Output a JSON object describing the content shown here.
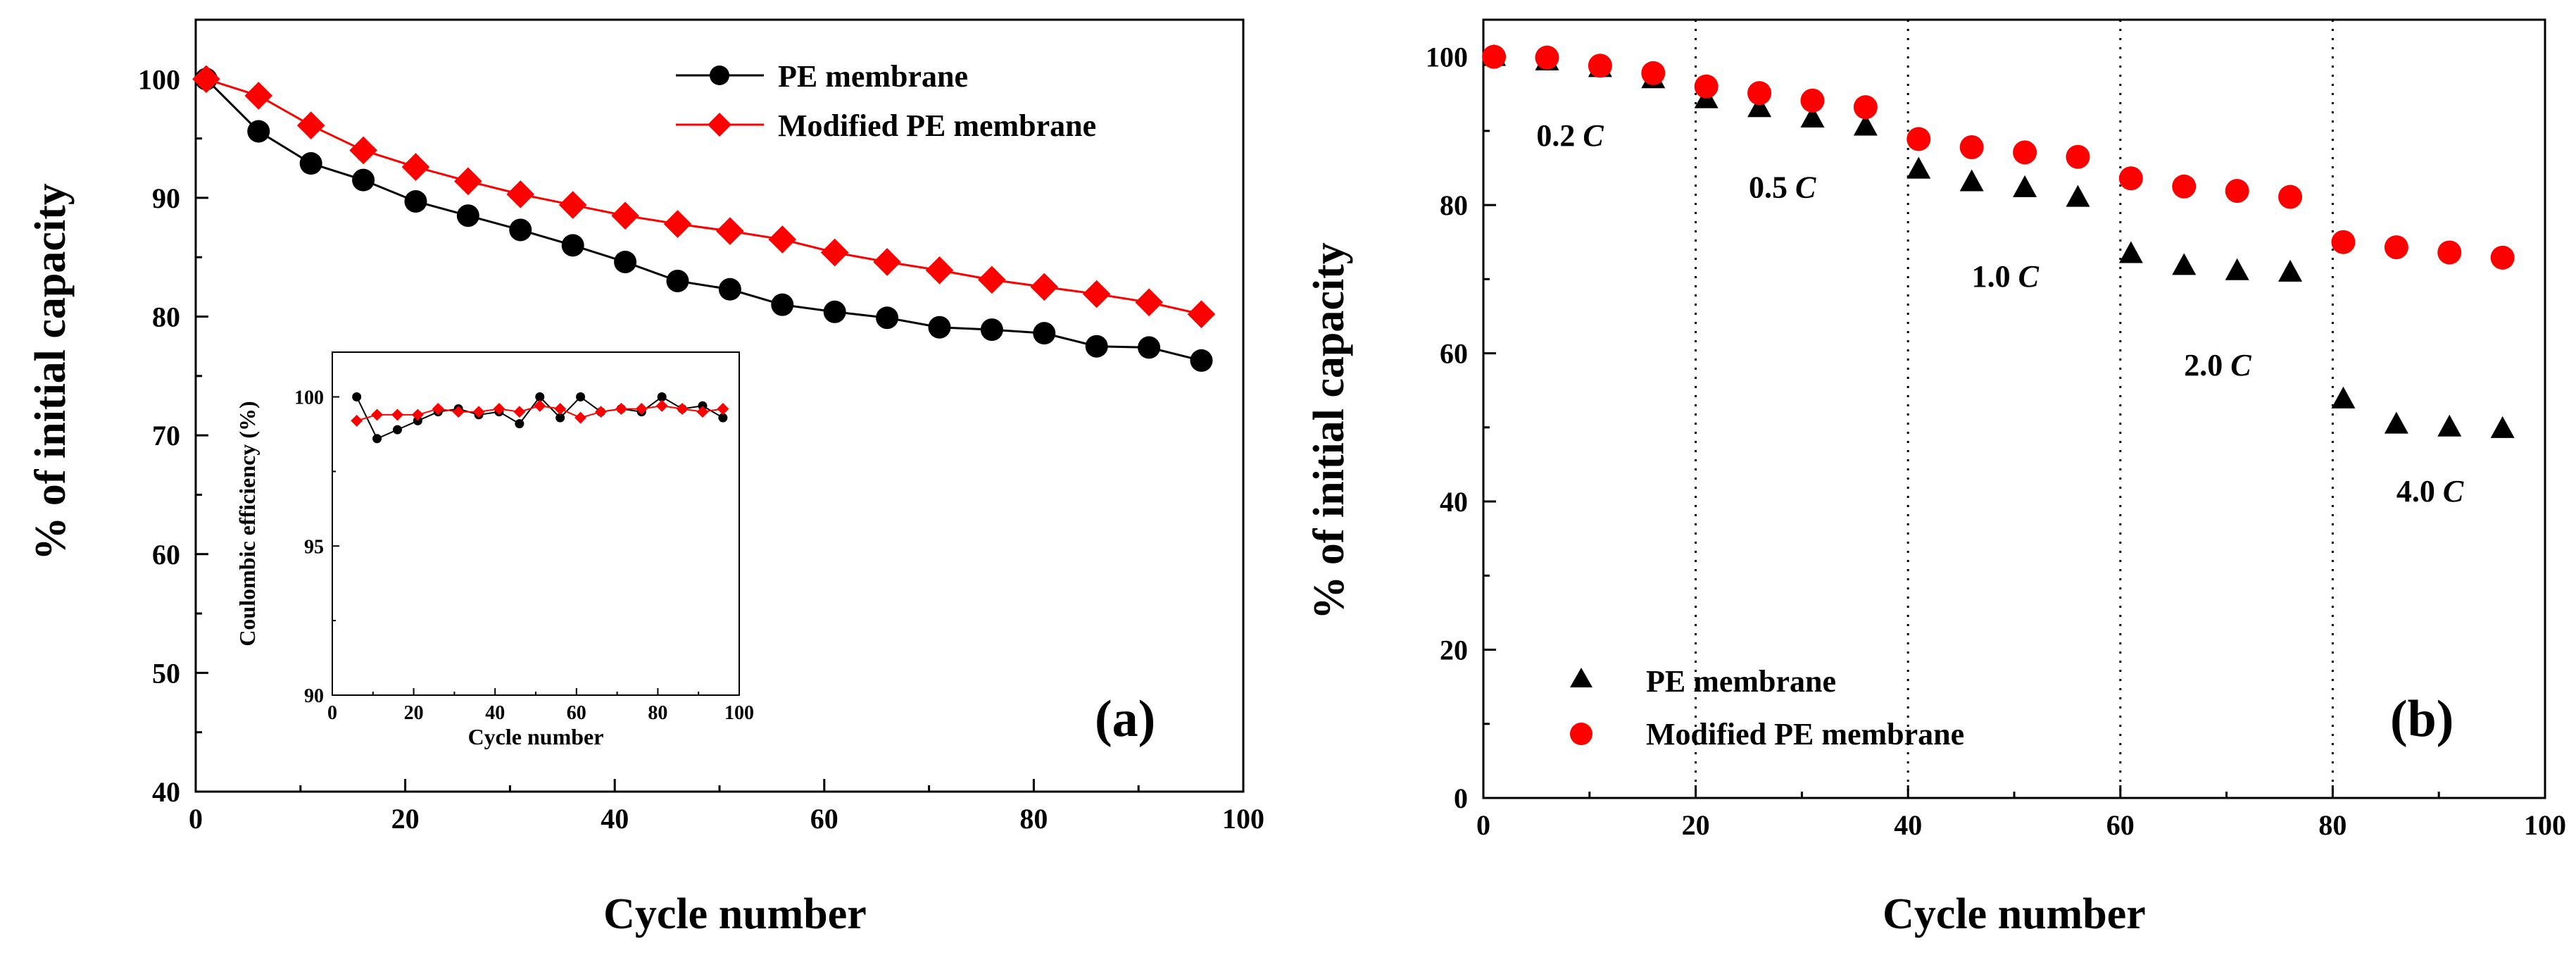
{
  "chart_data": [
    {
      "panel": "(a)",
      "type": "line",
      "xlabel": "Cycle number",
      "ylabel": "% of initial  capacity",
      "xlim": [
        0,
        100
      ],
      "ylim": [
        40,
        105
      ],
      "xticks": [
        0,
        20,
        40,
        60,
        80,
        100
      ],
      "yticks": [
        40,
        50,
        60,
        70,
        80,
        90,
        100
      ],
      "legend_position": "top-right",
      "series": [
        {
          "name": "PE membrane",
          "color": "#000000",
          "marker": "circle",
          "x": [
            1,
            6,
            11,
            16,
            21,
            26,
            31,
            36,
            41,
            46,
            51,
            56,
            61,
            66,
            71,
            76,
            81,
            86,
            91,
            96
          ],
          "y": [
            100,
            95.6,
            92.9,
            91.5,
            89.7,
            88.5,
            87.3,
            86.0,
            84.6,
            83.0,
            82.3,
            81.0,
            80.4,
            79.9,
            79.1,
            78.9,
            78.6,
            77.5,
            77.4,
            76.3
          ]
        },
        {
          "name": "Modified PE membrane",
          "color": "#ff0000",
          "marker": "diamond",
          "x": [
            1,
            6,
            11,
            16,
            21,
            26,
            31,
            36,
            41,
            46,
            51,
            56,
            61,
            66,
            71,
            76,
            81,
            86,
            91,
            96
          ],
          "y": [
            100,
            98.6,
            96.1,
            94.0,
            92.6,
            91.4,
            90.3,
            89.4,
            88.5,
            87.8,
            87.2,
            86.5,
            85.4,
            84.6,
            83.9,
            83.1,
            82.5,
            81.9,
            81.2,
            80.2
          ]
        }
      ],
      "inset": {
        "type": "line",
        "xlabel": "Cycle number",
        "ylabel": "Coulombic efficiency (%)",
        "xlim": [
          0,
          100
        ],
        "ylim": [
          90,
          101.5
        ],
        "xticks": [
          0,
          20,
          40,
          60,
          80,
          100
        ],
        "yticks": [
          90,
          95,
          100
        ],
        "series": [
          {
            "name": "PE membrane",
            "color": "#000000",
            "x": [
              6,
              11,
              16,
              21,
              26,
              31,
              36,
              41,
              46,
              51,
              56,
              61,
              66,
              71,
              76,
              81,
              86,
              91,
              96
            ],
            "y": [
              100.0,
              98.6,
              98.9,
              99.2,
              99.5,
              99.6,
              99.4,
              99.5,
              99.1,
              100.0,
              99.3,
              100.0,
              99.5,
              99.6,
              99.5,
              100.0,
              99.6,
              99.7,
              99.3
            ]
          },
          {
            "name": "Modified PE membrane",
            "color": "#ff0000",
            "x": [
              6,
              11,
              16,
              21,
              26,
              31,
              36,
              41,
              46,
              51,
              56,
              61,
              66,
              71,
              76,
              81,
              86,
              91,
              96
            ],
            "y": [
              99.2,
              99.4,
              99.4,
              99.4,
              99.6,
              99.5,
              99.5,
              99.6,
              99.5,
              99.7,
              99.6,
              99.3,
              99.5,
              99.6,
              99.6,
              99.7,
              99.6,
              99.5,
              99.6
            ]
          }
        ]
      }
    },
    {
      "panel": "(b)",
      "type": "scatter",
      "xlabel": "Cycle number",
      "ylabel": "% of initial  capacity",
      "xlim": [
        0,
        100
      ],
      "ylim": [
        0,
        105
      ],
      "xticks": [
        0,
        20,
        40,
        60,
        80,
        100
      ],
      "yticks": [
        0,
        20,
        40,
        60,
        80,
        100
      ],
      "legend_position": "bottom-left",
      "rate_dividers": [
        20,
        40,
        60,
        80
      ],
      "rate_labels": [
        {
          "text": "0.2 ",
          "unit": "C",
          "x": 5,
          "y": 88
        },
        {
          "text": "0.5 ",
          "unit": "C",
          "x": 25,
          "y": 81
        },
        {
          "text": "1.0 ",
          "unit": "C",
          "x": 46,
          "y": 69
        },
        {
          "text": "2.0 ",
          "unit": "C",
          "x": 66,
          "y": 57
        },
        {
          "text": "4.0 ",
          "unit": "C",
          "x": 86,
          "y": 40
        }
      ],
      "series": [
        {
          "name": "PE membrane",
          "color": "#000000",
          "marker": "triangle",
          "x": [
            1,
            6,
            11,
            16,
            21,
            26,
            31,
            36,
            41,
            46,
            51,
            56,
            61,
            66,
            71,
            76,
            81,
            86,
            91,
            96
          ],
          "y": [
            100,
            99.4,
            98.5,
            97.0,
            94.3,
            93.1,
            91.7,
            90.6,
            84.8,
            83.1,
            82.3,
            81.0,
            73.4,
            71.8,
            71.1,
            70.9,
            53.8,
            50.4,
            50.0,
            49.8
          ]
        },
        {
          "name": "Modified PE membrane",
          "color": "#ff0000",
          "marker": "circle",
          "x": [
            1,
            6,
            11,
            16,
            21,
            26,
            31,
            36,
            41,
            46,
            51,
            56,
            61,
            66,
            71,
            76,
            81,
            86,
            91,
            96
          ],
          "y": [
            100,
            99.9,
            98.8,
            97.8,
            96.0,
            95.1,
            94.1,
            93.2,
            88.9,
            87.8,
            87.1,
            86.5,
            83.6,
            82.5,
            81.9,
            81.1,
            75.0,
            74.3,
            73.6,
            72.9
          ]
        }
      ]
    }
  ]
}
